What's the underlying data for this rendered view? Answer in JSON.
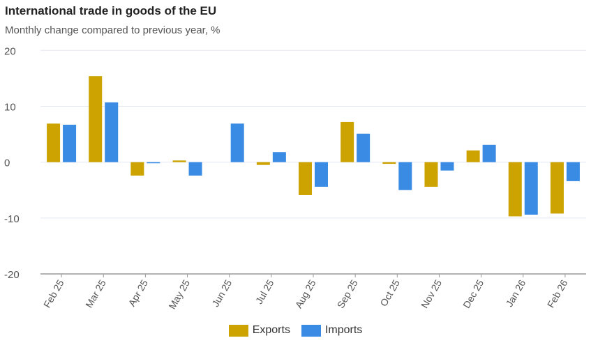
{
  "chart_data": {
    "type": "bar",
    "title": "International trade in goods of the EU",
    "subtitle": "Monthly change compared to previous year, %",
    "categories": [
      "Feb 25",
      "Mar 25",
      "Apr 25",
      "May 25",
      "Jun 25",
      "Jul 25",
      "Aug 25",
      "Sep 25",
      "Oct 25",
      "Nov 25",
      "Dec 25",
      "Jan 26",
      "Feb 26"
    ],
    "series": [
      {
        "name": "Exports",
        "color": "#cca300",
        "values": [
          6.9,
          15.4,
          -2.4,
          0.3,
          0,
          -0.5,
          -5.9,
          7.2,
          -0.3,
          -4.4,
          2.1,
          -9.7,
          -9.2
        ]
      },
      {
        "name": "Imports",
        "color": "#3a8be3",
        "values": [
          6.7,
          10.7,
          -0.2,
          -2.4,
          6.9,
          1.8,
          -4.4,
          5.1,
          -5.0,
          -1.5,
          3.1,
          -9.4,
          -3.4
        ]
      }
    ],
    "ylim": [
      -20,
      20
    ],
    "yticks": [
      20,
      10,
      0,
      -10,
      -20
    ],
    "grid": true,
    "legend": "bottom"
  }
}
